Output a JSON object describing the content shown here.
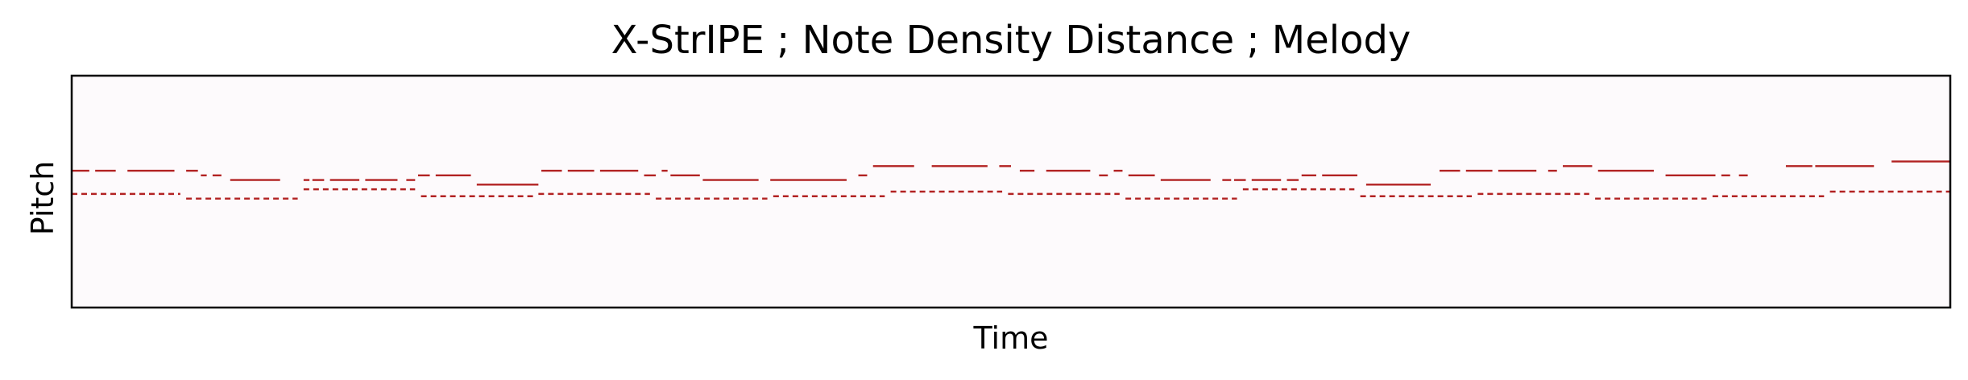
{
  "chart_data": {
    "type": "piano-roll",
    "title": "X-StrIPE ; Note Density Distance ; Melody",
    "xlabel": "Time",
    "ylabel": "Pitch",
    "xlim": [
      0,
      64
    ],
    "ylim": [
      0,
      10
    ],
    "grid": false,
    "legend": "none",
    "colors": {
      "background": "#fdfafc",
      "note": "#b22222",
      "frame": "#000000"
    },
    "series": [
      {
        "notes": [
          [
            0.0,
            0.6,
            5.9
          ],
          [
            0.8,
            1.5,
            5.9
          ],
          [
            1.9,
            3.5,
            5.9
          ],
          [
            3.9,
            4.3,
            5.9
          ],
          [
            4.4,
            4.6,
            5.7
          ],
          [
            4.8,
            5.1,
            5.7
          ],
          [
            5.4,
            7.1,
            5.5
          ],
          [
            7.9,
            8.1,
            5.5
          ],
          [
            8.2,
            8.6,
            5.5
          ],
          [
            8.8,
            9.8,
            5.5
          ],
          [
            10.0,
            11.1,
            5.5
          ],
          [
            11.4,
            11.7,
            5.5
          ],
          [
            11.8,
            12.2,
            5.7
          ],
          [
            12.4,
            13.6,
            5.7
          ],
          [
            13.8,
            15.9,
            5.3
          ],
          [
            16.0,
            16.7,
            5.9
          ],
          [
            16.9,
            17.8,
            5.9
          ],
          [
            18.0,
            19.3,
            5.9
          ],
          [
            19.5,
            19.9,
            5.7
          ],
          [
            20.1,
            20.3,
            5.9
          ],
          [
            20.4,
            21.4,
            5.7
          ],
          [
            21.5,
            23.4,
            5.5
          ],
          [
            23.8,
            26.4,
            5.5
          ],
          [
            26.8,
            27.1,
            5.7
          ],
          [
            27.3,
            28.7,
            6.1
          ],
          [
            29.3,
            31.2,
            6.1
          ],
          [
            31.6,
            32.0,
            6.1
          ],
          [
            32.3,
            32.8,
            5.9
          ],
          [
            33.2,
            34.7,
            5.9
          ],
          [
            35.0,
            35.3,
            5.7
          ],
          [
            35.5,
            35.8,
            5.9
          ],
          [
            36.0,
            36.9,
            5.7
          ],
          [
            37.1,
            38.8,
            5.5
          ],
          [
            39.2,
            39.5,
            5.5
          ],
          [
            39.6,
            40.0,
            5.5
          ],
          [
            40.2,
            41.2,
            5.5
          ],
          [
            41.4,
            41.8,
            5.5
          ],
          [
            41.9,
            42.4,
            5.7
          ],
          [
            42.6,
            43.8,
            5.7
          ],
          [
            44.1,
            46.3,
            5.3
          ],
          [
            46.6,
            47.3,
            5.9
          ],
          [
            47.5,
            48.4,
            5.9
          ],
          [
            48.6,
            49.9,
            5.9
          ],
          [
            50.3,
            50.6,
            5.9
          ],
          [
            50.8,
            51.8,
            6.1
          ],
          [
            52.0,
            53.9,
            5.9
          ],
          [
            54.3,
            56.0,
            5.7
          ],
          [
            56.2,
            56.5,
            5.7
          ],
          [
            56.8,
            57.1,
            5.7
          ],
          [
            58.4,
            59.3,
            6.1
          ],
          [
            59.4,
            61.4,
            6.1
          ],
          [
            62.0,
            64.0,
            6.3
          ]
        ]
      },
      {
        "style": "dashed",
        "notes": [
          [
            0.0,
            3.7,
            4.9
          ],
          [
            3.9,
            7.7,
            4.7
          ],
          [
            7.9,
            11.7,
            5.1
          ],
          [
            11.9,
            15.8,
            4.8
          ],
          [
            15.9,
            19.7,
            4.9
          ],
          [
            19.9,
            23.7,
            4.7
          ],
          [
            23.9,
            27.7,
            4.8
          ],
          [
            27.9,
            31.7,
            5.0
          ],
          [
            31.9,
            35.7,
            4.9
          ],
          [
            35.9,
            39.7,
            4.7
          ],
          [
            39.9,
            43.7,
            5.1
          ],
          [
            43.9,
            47.7,
            4.8
          ],
          [
            47.9,
            51.7,
            4.9
          ],
          [
            51.9,
            55.7,
            4.7
          ],
          [
            55.9,
            59.7,
            4.8
          ],
          [
            59.9,
            64.0,
            5.0
          ]
        ]
      }
    ]
  }
}
